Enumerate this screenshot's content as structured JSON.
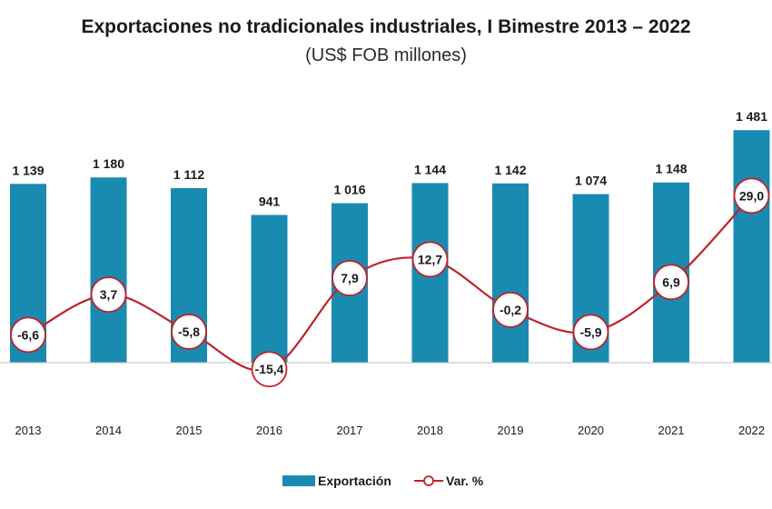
{
  "chart_data": {
    "type": "bar",
    "title": "Exportaciones no tradicionales industriales, I Bimestre 2013 – 2022",
    "subtitle": "(US$ FOB millones)",
    "categories": [
      "2013",
      "2014",
      "2015",
      "2016",
      "2017",
      "2018",
      "2019",
      "2020",
      "2021",
      "2022"
    ],
    "series": [
      {
        "name": "Exportación",
        "type": "bar",
        "color": "#1a8bb0",
        "values": [
          1139,
          1180,
          1112,
          941,
          1016,
          1144,
          1142,
          1074,
          1148,
          1481
        ],
        "labels": [
          "1 139",
          "1 180",
          "1 112",
          "941",
          "1 016",
          "1 144",
          "1 142",
          "1 074",
          "1 148",
          "1 481"
        ]
      },
      {
        "name": "Var. %",
        "type": "line",
        "color": "#c0222a",
        "values": [
          -6.6,
          3.7,
          -5.8,
          -15.4,
          7.9,
          12.7,
          -0.2,
          -5.9,
          6.9,
          29.0
        ],
        "labels": [
          "-6,6",
          "3,7",
          "-5,8",
          "-15,4",
          "7,9",
          "12,7",
          "-0,2",
          "-5,9",
          "6,9",
          "29,0"
        ]
      }
    ],
    "legend": "bottom-center",
    "grid": false
  }
}
